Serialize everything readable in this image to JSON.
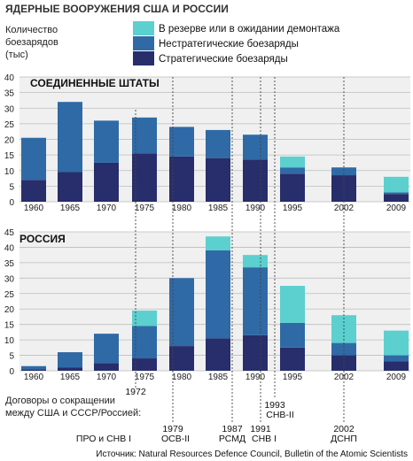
{
  "colors": {
    "strategic": "#272e6b",
    "nonstrategic": "#2f6aa6",
    "reserve": "#5ccfcf",
    "grid": "#bdbdbd",
    "panel": "#f0f0f0",
    "dashed": "#444444"
  },
  "title": "ЯДЕРНЫЕ ВООРУЖЕНИЯ США И РОССИИ",
  "ylabel_lines": [
    "Количество",
    "боезарядов",
    "(тыс)"
  ],
  "legend": [
    {
      "label": "В резерве или в ожидании демонтажа",
      "color": "#5ccfcf"
    },
    {
      "label": "Нестратегические боезаряды",
      "color": "#2f6aa6"
    },
    {
      "label": "Стратегические боезаряды",
      "color": "#272e6b"
    }
  ],
  "treaties_label_lines": [
    "Договоры о сокращении",
    "между США и СССР/Россией:"
  ],
  "treaty_year_labels": [
    "1972",
    "1979",
    "1987",
    "1991",
    "1993",
    "2002"
  ],
  "treaty_name_labels": [
    "ПРО и СНВ I",
    "ОСВ-II",
    "РСМД",
    "СНВ I",
    "СНВ-II",
    "ДСНП"
  ],
  "source": "Источник: Natural Resources Defence Council, Bulletin of the Atomic Scientists",
  "chart_data": [
    {
      "type": "bar",
      "stacked": true,
      "title": "СОЕДИНЕННЫЕ ШТАТЫ",
      "categories": [
        "1960",
        "1965",
        "1970",
        "1975",
        "1980",
        "1985",
        "1990",
        "1995",
        "2002",
        "2009"
      ],
      "series": [
        {
          "name": "Стратегические боезаряды",
          "values": [
            7,
            9.5,
            12.5,
            15.5,
            14.5,
            14,
            13.5,
            9,
            8.5,
            2.5
          ]
        },
        {
          "name": "Нестратегические боезаряды",
          "values": [
            13.5,
            22.5,
            13.5,
            11.5,
            9.5,
            9,
            8,
            2,
            2.5,
            0.5
          ]
        },
        {
          "name": "В резерве или в ожидании демонтажа",
          "values": [
            0,
            0,
            0,
            0,
            0,
            0,
            0,
            3.5,
            0,
            5
          ]
        }
      ],
      "ylim": [
        0,
        40
      ],
      "yticks": [
        0,
        5,
        10,
        15,
        20,
        25,
        30,
        35,
        40
      ],
      "grid": true
    },
    {
      "type": "bar",
      "stacked": true,
      "title": "РОССИЯ",
      "categories": [
        "1960",
        "1965",
        "1970",
        "1975",
        "1980",
        "1985",
        "1990",
        "1995",
        "2002",
        "2009"
      ],
      "series": [
        {
          "name": "Стратегические боезаряды",
          "values": [
            0.5,
            1,
            2.5,
            4,
            8,
            10.5,
            11.5,
            7.5,
            5,
            3
          ]
        },
        {
          "name": "Нестратегические боезаряды",
          "values": [
            1,
            5,
            9.5,
            10.5,
            22,
            28.5,
            22,
            8,
            4,
            2
          ]
        },
        {
          "name": "В резерве или в ожидании демонтажа",
          "values": [
            0,
            0,
            0,
            5,
            0,
            4.5,
            4,
            12,
            9,
            8
          ]
        }
      ],
      "ylim": [
        0,
        45
      ],
      "yticks": [
        0,
        5,
        10,
        15,
        20,
        25,
        30,
        35,
        40,
        45
      ],
      "grid": true
    }
  ]
}
